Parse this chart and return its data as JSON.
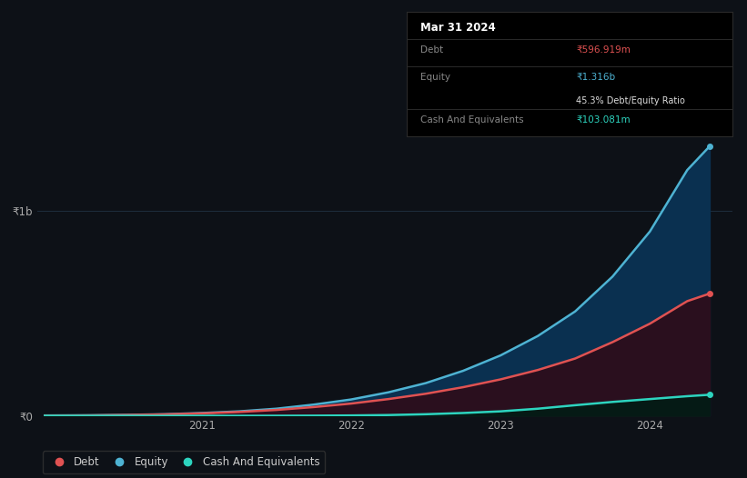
{
  "bg_color": "#0d1117",
  "plot_bg_color": "#0d1117",
  "grid_color": "#1e2d3d",
  "ylim": [
    0,
    1400000000
  ],
  "xlim_start": 2019.9,
  "xlim_end": 2024.55,
  "yticks": [
    0,
    1000000000
  ],
  "ytick_labels": [
    "₹0",
    "₹1b"
  ],
  "x_ticks": [
    2021,
    2022,
    2023,
    2024
  ],
  "equity": {
    "x": [
      2019.95,
      2020.25,
      2020.5,
      2020.75,
      2021.0,
      2021.25,
      2021.5,
      2021.75,
      2022.0,
      2022.25,
      2022.5,
      2022.75,
      2023.0,
      2023.25,
      2023.5,
      2023.75,
      2024.0,
      2024.25,
      2024.4
    ],
    "y": [
      2000000,
      3000000,
      5000000,
      8000000,
      14000000,
      22000000,
      35000000,
      55000000,
      80000000,
      115000000,
      160000000,
      220000000,
      295000000,
      390000000,
      510000000,
      680000000,
      900000000,
      1200000000,
      1316000000
    ],
    "color": "#4eb3d3",
    "fill_color": "#0a3050",
    "label": "Equity"
  },
  "debt": {
    "x": [
      2019.95,
      2020.25,
      2020.5,
      2020.75,
      2021.0,
      2021.25,
      2021.5,
      2021.75,
      2022.0,
      2022.25,
      2022.5,
      2022.75,
      2023.0,
      2023.25,
      2023.5,
      2023.75,
      2024.0,
      2024.25,
      2024.4
    ],
    "y": [
      1000000,
      2000000,
      4000000,
      7000000,
      12000000,
      19000000,
      29000000,
      43000000,
      60000000,
      82000000,
      108000000,
      140000000,
      178000000,
      224000000,
      280000000,
      360000000,
      450000000,
      560000000,
      596919000
    ],
    "color": "#e05252",
    "fill_color": "#2a0f1e",
    "label": "Debt"
  },
  "cash": {
    "x": [
      2019.95,
      2020.25,
      2020.5,
      2020.75,
      2021.0,
      2021.25,
      2021.5,
      2021.75,
      2022.0,
      2022.25,
      2022.5,
      2022.75,
      2023.0,
      2023.25,
      2023.5,
      2023.75,
      2024.0,
      2024.25,
      2024.4
    ],
    "y": [
      500000,
      300000,
      100000,
      50000,
      100000,
      200000,
      500000,
      1000000,
      2000000,
      4000000,
      8000000,
      14000000,
      22000000,
      35000000,
      52000000,
      68000000,
      82000000,
      96000000,
      103081000
    ],
    "color": "#2dd4bf",
    "fill_color": "#051a15",
    "label": "Cash And Equivalents"
  },
  "tooltip": {
    "date": "Mar 31 2024",
    "debt_label": "Debt",
    "debt_value": "₹596.919m",
    "equity_label": "Equity",
    "equity_value": "₹1.316b",
    "ratio_value": "45.3%",
    "ratio_label": "Debt/Equity Ratio",
    "cash_label": "Cash And Equivalents",
    "cash_value": "₹103.081m"
  },
  "legend": {
    "items": [
      "Debt",
      "Equity",
      "Cash And Equivalents"
    ],
    "colors": [
      "#e05252",
      "#4eb3d3",
      "#2dd4bf"
    ]
  },
  "figsize": [
    8.21,
    5.26
  ],
  "dpi": 100
}
